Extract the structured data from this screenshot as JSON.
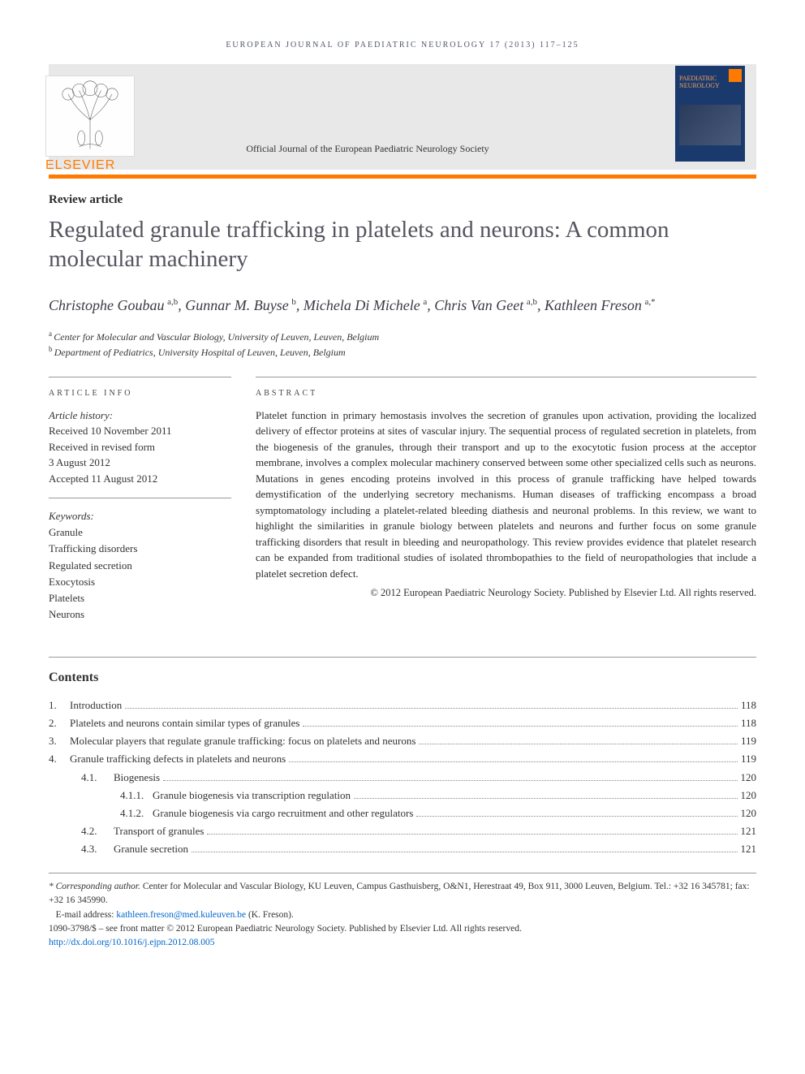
{
  "runningHead": "EUROPEAN JOURNAL OF PAEDIATRIC NEUROLOGY 17 (2013) 117–125",
  "publisherWord": "ELSEVIER",
  "societyLine": "Official Journal of the European Paediatric Neurology Society",
  "journalCoverTitle": "PAEDIATRIC NEUROLOGY",
  "articleType": "Review article",
  "title": "Regulated granule trafficking in platelets and neurons: A common molecular machinery",
  "authorsHtmlParts": [
    {
      "name": "Christophe Goubau",
      "aff": "a,b",
      "sep": ", "
    },
    {
      "name": "Gunnar M. Buyse",
      "aff": "b",
      "sep": ", "
    },
    {
      "name": "Michela Di Michele",
      "aff": "a",
      "sep": ", "
    },
    {
      "name": "Chris Van Geet",
      "aff": "a,b",
      "sep": ", "
    },
    {
      "name": "Kathleen Freson",
      "aff": "a,*",
      "sep": ""
    }
  ],
  "affiliations": [
    {
      "sup": "a",
      "text": "Center for Molecular and Vascular Biology, University of Leuven, Leuven, Belgium"
    },
    {
      "sup": "b",
      "text": "Department of Pediatrics, University Hospital of Leuven, Leuven, Belgium"
    }
  ],
  "infoHead": "ARTICLE INFO",
  "abstractHead": "ABSTRACT",
  "historyLabel": "Article history:",
  "history": [
    "Received 10 November 2011",
    "Received in revised form",
    "3 August 2012",
    "Accepted 11 August 2012"
  ],
  "keywordsLabel": "Keywords:",
  "keywords": [
    "Granule",
    "Trafficking disorders",
    "Regulated secretion",
    "Exocytosis",
    "Platelets",
    "Neurons"
  ],
  "abstract": "Platelet function in primary hemostasis involves the secretion of granules upon activation, providing the localized delivery of effector proteins at sites of vascular injury. The sequential process of regulated secretion in platelets, from the biogenesis of the granules, through their transport and up to the exocytotic fusion process at the acceptor membrane, involves a complex molecular machinery conserved between some other specialized cells such as neurons. Mutations in genes encoding proteins involved in this process of granule trafficking have helped towards demystification of the underlying secretory mechanisms. Human diseases of trafficking encompass a broad symptomatology including a platelet-related bleeding diathesis and neuronal problems. In this review, we want to highlight the similarities in granule biology between platelets and neurons and further focus on some granule trafficking disorders that result in bleeding and neuropathology. This review provides evidence that platelet research can be expanded from traditional studies of isolated thrombopathies to the field of neuropathologies that include a platelet secretion defect.",
  "copyright": "© 2012 European Paediatric Neurology Society. Published by Elsevier Ltd. All rights reserved.",
  "contentsHead": "Contents",
  "toc": [
    {
      "num": "1.",
      "label": "Introduction",
      "page": "118",
      "indent": 0
    },
    {
      "num": "2.",
      "label": "Platelets and neurons contain similar types of granules",
      "page": "118",
      "indent": 0
    },
    {
      "num": "3.",
      "label": "Molecular players that regulate granule trafficking: focus on platelets and neurons",
      "page": "119",
      "indent": 0
    },
    {
      "num": "4.",
      "label": "Granule trafficking defects in platelets and neurons",
      "page": "119",
      "indent": 0
    },
    {
      "num": "4.1.",
      "label": "Biogenesis",
      "page": "120",
      "indent": 1
    },
    {
      "num": "4.1.1.",
      "label": "Granule biogenesis via transcription regulation",
      "page": "120",
      "indent": 2
    },
    {
      "num": "4.1.2.",
      "label": "Granule biogenesis via cargo recruitment and other regulators",
      "page": "120",
      "indent": 2
    },
    {
      "num": "4.2.",
      "label": "Transport of granules",
      "page": "121",
      "indent": 1
    },
    {
      "num": "4.3.",
      "label": "Granule secretion",
      "page": "121",
      "indent": 1
    }
  ],
  "footer": {
    "corrLabel": "* Corresponding author.",
    "corrText": " Center for Molecular and Vascular Biology, KU Leuven, Campus Gasthuisberg, O&N1, Herestraat 49, Box 911, 3000 Leuven, Belgium. Tel.: +32 16 345781; fax: +32 16 345990.",
    "emailLabel": "E-mail address: ",
    "email": "kathleen.freson@med.kuleuven.be",
    "emailSuffix": " (K. Freson).",
    "issnLine": "1090-3798/$ – see front matter © 2012 European Paediatric Neurology Society. Published by Elsevier Ltd. All rights reserved.",
    "doi": "http://dx.doi.org/10.1016/j.ejpn.2012.08.005"
  },
  "colors": {
    "orange": "#ff7a00",
    "coverBlue": "#1a3a6e",
    "link": "#0066cc"
  }
}
